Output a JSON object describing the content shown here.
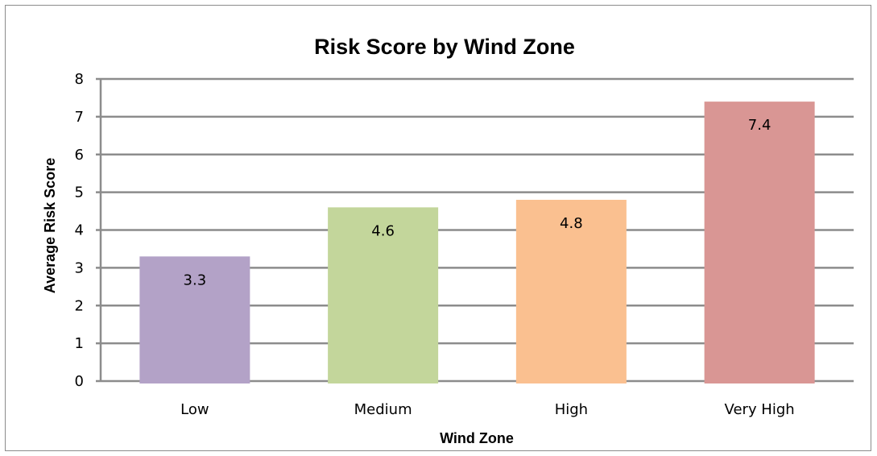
{
  "chart_data": {
    "type": "bar",
    "title": "Risk Score by Wind Zone",
    "xlabel": "Wind Zone",
    "ylabel": "Average Risk Score",
    "categories": [
      "Low",
      "Medium",
      "High",
      "Very High"
    ],
    "values": [
      3.3,
      4.6,
      4.8,
      7.4
    ],
    "data_labels": [
      "3.3",
      "4.6",
      "4.8",
      "7.4"
    ],
    "colors": [
      "#b3a2c7",
      "#c3d69b",
      "#fac090",
      "#d99694"
    ],
    "ylim": [
      0,
      8
    ],
    "yticks": [
      0,
      1,
      2,
      3,
      4,
      5,
      6,
      7,
      8
    ],
    "grid": true,
    "legend": false
  }
}
